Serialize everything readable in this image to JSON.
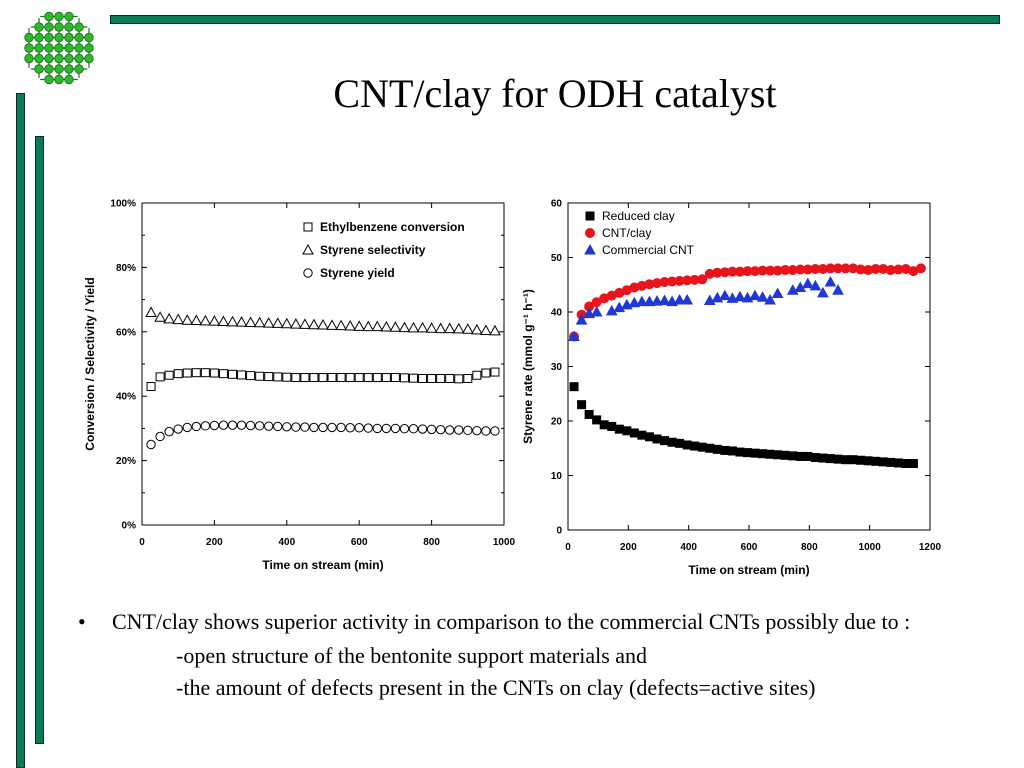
{
  "slide": {
    "title": "CNT/clay for ODH catalyst",
    "bullet": "CNT/clay shows superior activity in comparison to the commercial CNTs possibly due to :",
    "bullet_symbol": "•",
    "sub_points": [
      "-open structure of the bentonite support materials and",
      "-the amount of defects present in the CNTs on clay (defects=active sites)"
    ],
    "colors": {
      "bar": "#0a7a57",
      "logo_green": "#2eb82e"
    },
    "logo_icon": "fullerene-logo-icon"
  },
  "chart_data": [
    {
      "type": "scatter",
      "xlabel": "Time on stream (min)",
      "ylabel": "Conversion / Selectivity / Yield",
      "xlim": [
        0,
        1000
      ],
      "ylim": [
        0,
        100
      ],
      "xticks": [
        "0",
        "200",
        "400",
        "600",
        "800",
        "1000"
      ],
      "yticks": [
        "0%",
        "20%",
        "40%",
        "60%",
        "80%",
        "100%"
      ],
      "grid": false,
      "legend_position": "top-right",
      "series": [
        {
          "name": "Ethylbenzene conversion",
          "marker": "square-open",
          "x": [
            25,
            50,
            75,
            100,
            125,
            150,
            175,
            200,
            225,
            250,
            275,
            300,
            325,
            350,
            375,
            400,
            425,
            450,
            475,
            500,
            525,
            550,
            575,
            600,
            625,
            650,
            675,
            700,
            725,
            750,
            775,
            800,
            825,
            850,
            875,
            900,
            925,
            950,
            975
          ],
          "y": [
            43,
            46,
            46.5,
            47,
            47.2,
            47.3,
            47.3,
            47.2,
            47,
            46.8,
            46.6,
            46.4,
            46.2,
            46.1,
            46,
            45.9,
            45.8,
            45.8,
            45.8,
            45.8,
            45.8,
            45.8,
            45.8,
            45.8,
            45.8,
            45.8,
            45.8,
            45.8,
            45.7,
            45.6,
            45.5,
            45.5,
            45.5,
            45.5,
            45.4,
            45.5,
            46.5,
            47.2,
            47.5
          ]
        },
        {
          "name": "Styrene selectivity",
          "marker": "triangle-open",
          "x": [
            25,
            50,
            75,
            100,
            125,
            150,
            175,
            200,
            225,
            250,
            275,
            300,
            325,
            350,
            375,
            400,
            425,
            450,
            475,
            500,
            525,
            550,
            575,
            600,
            625,
            650,
            675,
            700,
            725,
            750,
            775,
            800,
            825,
            850,
            875,
            900,
            925,
            950,
            975
          ],
          "y": [
            66,
            64.5,
            64,
            63.8,
            63.6,
            63.5,
            63.4,
            63.3,
            63.2,
            63.1,
            63,
            62.9,
            62.8,
            62.7,
            62.6,
            62.5,
            62.4,
            62.3,
            62.2,
            62.1,
            62,
            61.9,
            61.8,
            61.7,
            61.6,
            61.6,
            61.5,
            61.4,
            61.3,
            61.2,
            61.2,
            61.1,
            61,
            61,
            60.9,
            60.8,
            60.6,
            60.4,
            60.3
          ]
        },
        {
          "name": "Styrene yield",
          "marker": "circle-open",
          "x": [
            25,
            50,
            75,
            100,
            125,
            150,
            175,
            200,
            225,
            250,
            275,
            300,
            325,
            350,
            375,
            400,
            425,
            450,
            475,
            500,
            525,
            550,
            575,
            600,
            625,
            650,
            675,
            700,
            725,
            750,
            775,
            800,
            825,
            850,
            875,
            900,
            925,
            950,
            975
          ],
          "y": [
            25,
            27.5,
            29,
            29.8,
            30.3,
            30.6,
            30.8,
            30.9,
            31,
            31,
            31,
            30.9,
            30.8,
            30.7,
            30.6,
            30.5,
            30.4,
            30.4,
            30.3,
            30.3,
            30.3,
            30.3,
            30.2,
            30.2,
            30.1,
            30,
            30,
            30,
            29.9,
            29.9,
            29.8,
            29.7,
            29.6,
            29.5,
            29.5,
            29.4,
            29.3,
            29.2,
            29.2
          ]
        }
      ]
    },
    {
      "type": "scatter",
      "xlabel": "Time on stream (min)",
      "ylabel": "Styrene rate (mmol g⁻¹ h⁻¹)",
      "xlim": [
        0,
        1200
      ],
      "ylim": [
        0,
        60
      ],
      "xticks": [
        "0",
        "200",
        "400",
        "600",
        "800",
        "1000",
        "1200"
      ],
      "yticks": [
        "0",
        "10",
        "20",
        "30",
        "40",
        "50",
        "60"
      ],
      "grid": false,
      "legend_position": "top-left",
      "series": [
        {
          "name": "Reduced clay",
          "marker": "square-filled",
          "color": "#000000",
          "x": [
            20,
            45,
            70,
            95,
            120,
            145,
            170,
            195,
            220,
            245,
            270,
            295,
            320,
            345,
            370,
            395,
            420,
            445,
            470,
            495,
            520,
            545,
            570,
            595,
            620,
            645,
            670,
            695,
            720,
            745,
            770,
            795,
            820,
            845,
            870,
            895,
            920,
            945,
            970,
            995,
            1020,
            1045,
            1070,
            1095,
            1120,
            1145
          ],
          "y": [
            26.3,
            23,
            21.2,
            20.2,
            19.3,
            19,
            18.5,
            18.2,
            17.8,
            17.4,
            17.1,
            16.7,
            16.4,
            16.1,
            15.9,
            15.6,
            15.4,
            15.2,
            15,
            14.8,
            14.6,
            14.5,
            14.3,
            14.2,
            14.1,
            14,
            13.9,
            13.8,
            13.7,
            13.6,
            13.5,
            13.5,
            13.3,
            13.2,
            13.1,
            13,
            12.9,
            12.9,
            12.8,
            12.7,
            12.6,
            12.5,
            12.4,
            12.3,
            12.2,
            12.2
          ]
        },
        {
          "name": "CNT/clay",
          "marker": "circle-filled",
          "color": "#e8141b",
          "x": [
            20,
            45,
            70,
            95,
            120,
            145,
            170,
            195,
            220,
            245,
            270,
            295,
            320,
            345,
            370,
            395,
            420,
            445,
            470,
            495,
            520,
            545,
            570,
            595,
            620,
            645,
            670,
            695,
            720,
            745,
            770,
            795,
            820,
            845,
            870,
            895,
            920,
            945,
            970,
            995,
            1020,
            1045,
            1070,
            1095,
            1120,
            1145,
            1170
          ],
          "y": [
            35.5,
            39.5,
            41,
            41.8,
            42.5,
            43,
            43.5,
            44,
            44.5,
            44.8,
            45.1,
            45.3,
            45.5,
            45.6,
            45.7,
            45.8,
            45.9,
            46,
            47,
            47.2,
            47.3,
            47.4,
            47.4,
            47.5,
            47.5,
            47.6,
            47.6,
            47.6,
            47.7,
            47.7,
            47.8,
            47.8,
            47.9,
            47.9,
            48,
            48,
            48,
            48,
            47.8,
            47.7,
            47.9,
            47.9,
            47.7,
            47.8,
            47.9,
            47.5,
            48
          ]
        },
        {
          "name": "Commercial CNT",
          "marker": "triangle-filled",
          "color": "#1f38d6",
          "x": [
            20,
            45,
            70,
            95,
            145,
            170,
            195,
            220,
            245,
            270,
            295,
            320,
            345,
            370,
            395,
            470,
            495,
            520,
            545,
            570,
            595,
            620,
            645,
            670,
            695,
            745,
            770,
            795,
            820,
            845,
            870,
            895
          ],
          "y": [
            35.5,
            38.5,
            39.7,
            40,
            40.2,
            40.8,
            41.3,
            41.7,
            41.9,
            41.9,
            42,
            42.1,
            41.9,
            42.2,
            42.2,
            42.1,
            42.6,
            43,
            42.5,
            42.8,
            42.6,
            43,
            42.7,
            42.2,
            43.4,
            44,
            44.5,
            45.2,
            44.8,
            43.5,
            45.5,
            44
          ]
        }
      ]
    }
  ]
}
